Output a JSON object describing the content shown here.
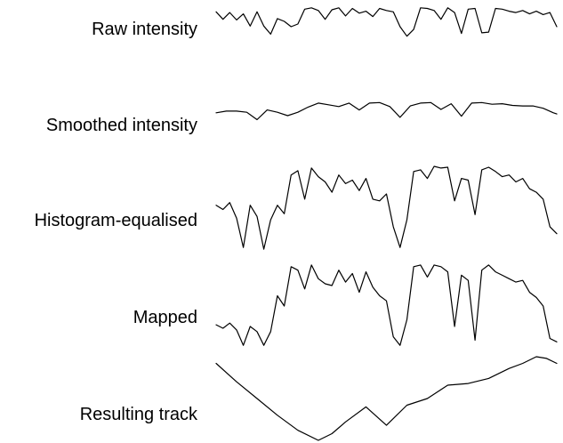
{
  "chart_data": {
    "type": "line",
    "x_range": [
      0,
      100
    ],
    "axes_visible": false,
    "grid": false,
    "legend": "none",
    "color": "#000000",
    "series": [
      {
        "name": "Raw intensity",
        "x": [
          0,
          2,
          4,
          6,
          8,
          10,
          12,
          14,
          16,
          18,
          20,
          22,
          24,
          26,
          28,
          30,
          32,
          34,
          36,
          38,
          40,
          42,
          44,
          46,
          48,
          50,
          52,
          54,
          56,
          58,
          60,
          62,
          64,
          66,
          68,
          70,
          72,
          74,
          76,
          78,
          80,
          82,
          84,
          86,
          88,
          90,
          92,
          94,
          96,
          98,
          100
        ],
        "y": [
          0.86,
          0.64,
          0.84,
          0.62,
          0.8,
          0.44,
          0.86,
          0.44,
          0.2,
          0.66,
          0.58,
          0.42,
          0.5,
          0.94,
          0.98,
          0.9,
          0.64,
          0.92,
          0.98,
          0.74,
          0.96,
          0.82,
          0.88,
          0.72,
          0.96,
          0.9,
          0.86,
          0.42,
          0.14,
          0.34,
          0.98,
          0.96,
          0.9,
          0.64,
          0.98,
          0.84,
          0.22,
          0.94,
          0.96,
          0.24,
          0.26,
          0.96,
          0.94,
          0.88,
          0.84,
          0.9,
          0.8,
          0.88,
          0.78,
          0.84,
          0.42
        ]
      },
      {
        "name": "Smoothed intensity",
        "x": [
          0,
          3,
          6,
          9,
          12,
          15,
          18,
          21,
          24,
          27,
          30,
          33,
          36,
          39,
          42,
          45,
          48,
          51,
          54,
          57,
          60,
          63,
          66,
          69,
          72,
          75,
          78,
          81,
          84,
          87,
          90,
          93,
          96,
          99,
          100
        ],
        "y": [
          0.6,
          0.66,
          0.66,
          0.62,
          0.36,
          0.7,
          0.62,
          0.5,
          0.62,
          0.8,
          0.94,
          0.88,
          0.82,
          0.94,
          0.7,
          0.94,
          0.96,
          0.82,
          0.44,
          0.84,
          0.94,
          0.96,
          0.72,
          0.92,
          0.48,
          0.94,
          0.96,
          0.9,
          0.92,
          0.86,
          0.84,
          0.84,
          0.76,
          0.6,
          0.56
        ]
      },
      {
        "name": "Histogram-equalised",
        "x": [
          0,
          2,
          4,
          6,
          8,
          10,
          12,
          14,
          16,
          18,
          20,
          22,
          24,
          26,
          28,
          30,
          32,
          34,
          36,
          38,
          40,
          42,
          44,
          46,
          48,
          50,
          52,
          54,
          56,
          58,
          60,
          62,
          64,
          66,
          68,
          70,
          72,
          74,
          76,
          78,
          80,
          82,
          84,
          86,
          88,
          90,
          92,
          94,
          96,
          98,
          100
        ],
        "y": [
          0.55,
          0.5,
          0.58,
          0.4,
          0.06,
          0.55,
          0.42,
          0.04,
          0.38,
          0.55,
          0.45,
          0.9,
          0.95,
          0.62,
          0.98,
          0.88,
          0.82,
          0.7,
          0.9,
          0.8,
          0.84,
          0.72,
          0.86,
          0.62,
          0.6,
          0.68,
          0.3,
          0.06,
          0.38,
          0.94,
          0.96,
          0.86,
          1.0,
          0.98,
          0.99,
          0.6,
          0.86,
          0.84,
          0.44,
          0.96,
          0.99,
          0.94,
          0.88,
          0.9,
          0.82,
          0.86,
          0.74,
          0.7,
          0.62,
          0.3,
          0.22
        ]
      },
      {
        "name": "Mapped",
        "x": [
          0,
          2,
          4,
          6,
          8,
          10,
          12,
          14,
          16,
          18,
          20,
          22,
          24,
          26,
          28,
          30,
          32,
          34,
          36,
          38,
          40,
          42,
          44,
          46,
          48,
          50,
          52,
          54,
          56,
          58,
          60,
          62,
          64,
          66,
          68,
          70,
          72,
          74,
          76,
          78,
          80,
          82,
          84,
          86,
          88,
          90,
          92,
          94,
          96,
          98,
          100
        ],
        "y": [
          0.28,
          0.24,
          0.3,
          0.22,
          0.04,
          0.26,
          0.2,
          0.04,
          0.2,
          0.62,
          0.5,
          0.96,
          0.92,
          0.7,
          0.98,
          0.82,
          0.76,
          0.74,
          0.92,
          0.78,
          0.88,
          0.66,
          0.9,
          0.72,
          0.62,
          0.56,
          0.14,
          0.04,
          0.34,
          0.96,
          0.98,
          0.84,
          0.98,
          0.96,
          0.9,
          0.26,
          0.86,
          0.8,
          0.1,
          0.92,
          0.98,
          0.9,
          0.86,
          0.82,
          0.78,
          0.8,
          0.66,
          0.6,
          0.5,
          0.12,
          0.08
        ]
      },
      {
        "name": "Resulting track",
        "x": [
          0,
          6,
          12,
          18,
          24,
          30,
          34,
          38,
          44,
          50,
          56,
          62,
          68,
          74,
          80,
          86,
          90,
          94,
          97,
          100
        ],
        "y": [
          0.92,
          0.7,
          0.5,
          0.3,
          0.12,
          0.0,
          0.08,
          0.22,
          0.4,
          0.18,
          0.42,
          0.5,
          0.66,
          0.68,
          0.74,
          0.86,
          0.92,
          1.0,
          0.98,
          0.92
        ]
      }
    ]
  }
}
